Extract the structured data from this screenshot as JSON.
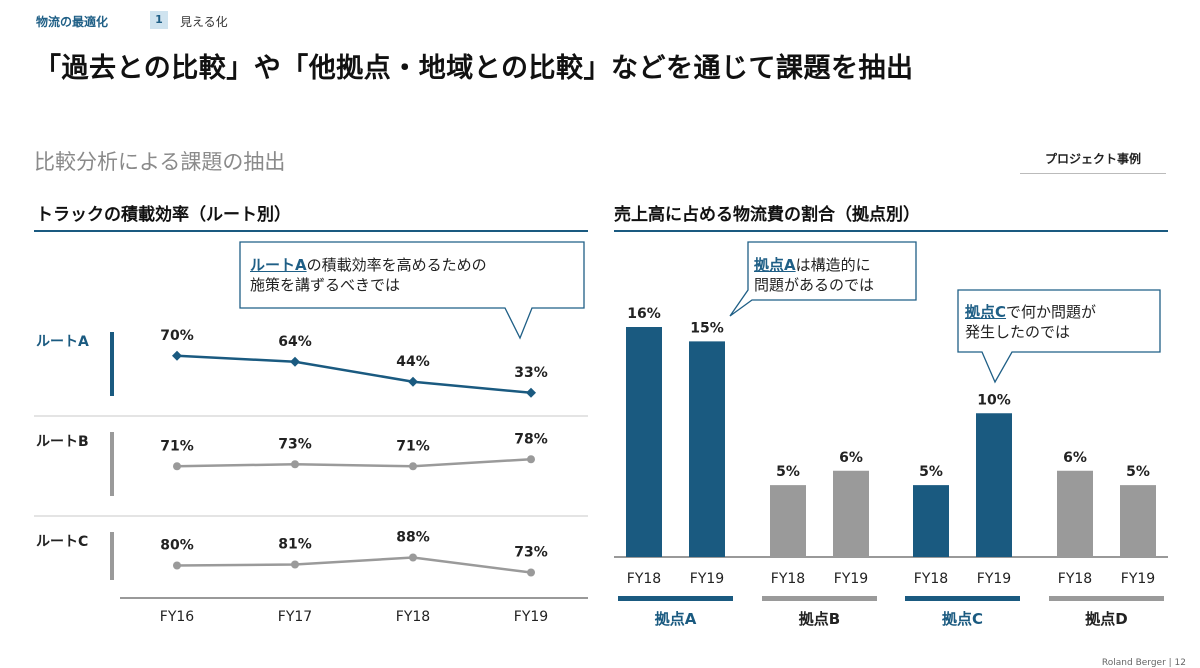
{
  "header": {
    "section": "物流の最適化",
    "step_num": "1",
    "step_label": "見える化",
    "title": "「過去との比較」や「他拠点・地域との比較」などを通じて課題を抽出",
    "subtitle": "比較分析による課題の抽出",
    "tag": "プロジェクト事例"
  },
  "footer": {
    "brand": "Roland Berger",
    "page": "12"
  },
  "colors": {
    "accent": "#1a5a80",
    "gray": "#9a9a9a"
  },
  "chart_data": [
    {
      "type": "line",
      "title": "トラックの積載効率（ルート別）",
      "x": [
        "FY16",
        "FY17",
        "FY18",
        "FY19"
      ],
      "series": [
        {
          "name": "ルートA",
          "values": [
            70,
            64,
            44,
            33
          ],
          "labels": [
            "70%",
            "64%",
            "44%",
            "33%"
          ]
        },
        {
          "name": "ルートB",
          "values": [
            71,
            73,
            71,
            78
          ],
          "labels": [
            "71%",
            "73%",
            "71%",
            "78%"
          ]
        },
        {
          "name": "ルートC",
          "values": [
            80,
            81,
            88,
            73
          ],
          "labels": [
            "80%",
            "81%",
            "88%",
            "73%"
          ]
        }
      ],
      "callout": {
        "highlight": "ルートA",
        "line1": "の積載効率を高めるための",
        "line2": "施策を講ずるべきでは"
      }
    },
    {
      "type": "bar",
      "title": "売上高に占める物流費の割合（拠点別）",
      "ylim": [
        0,
        16
      ],
      "groups": [
        {
          "name": "拠点A",
          "highlight": true,
          "bars": [
            {
              "x": "FY18",
              "value": 16,
              "label": "16%"
            },
            {
              "x": "FY19",
              "value": 15,
              "label": "15%"
            }
          ]
        },
        {
          "name": "拠点B",
          "highlight": false,
          "bars": [
            {
              "x": "FY18",
              "value": 5,
              "label": "5%"
            },
            {
              "x": "FY19",
              "value": 6,
              "label": "6%"
            }
          ]
        },
        {
          "name": "拠点C",
          "highlight": true,
          "bars": [
            {
              "x": "FY18",
              "value": 5,
              "label": "5%"
            },
            {
              "x": "FY19",
              "value": 10,
              "label": "10%"
            }
          ]
        },
        {
          "name": "拠点D",
          "highlight": false,
          "bars": [
            {
              "x": "FY18",
              "value": 6,
              "label": "6%"
            },
            {
              "x": "FY19",
              "value": 5,
              "label": "5%"
            }
          ]
        }
      ],
      "callouts": [
        {
          "highlight": "拠点A",
          "line1": "は構造的に",
          "line2": "問題があるのでは"
        },
        {
          "highlight": "拠点C",
          "line1": "で何か問題が",
          "line2": "発生したのでは"
        }
      ]
    }
  ]
}
